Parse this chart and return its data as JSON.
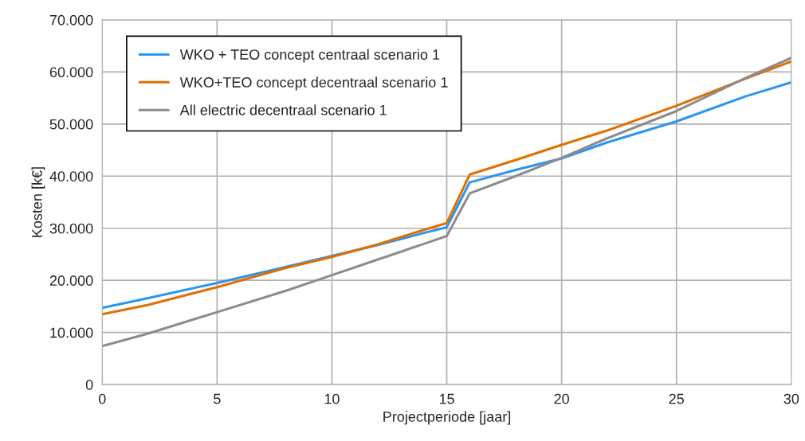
{
  "chart_data": {
    "type": "line",
    "xlabel": "Projectperiode [jaar]",
    "ylabel": "Kosten [k€]",
    "x": [
      0,
      2,
      5,
      8,
      10,
      12,
      14,
      15,
      16,
      18,
      20,
      22,
      25,
      28,
      30
    ],
    "series": [
      {
        "name": "WKO + TEO concept centraal scenario 1",
        "color": "#2b95f0",
        "values": [
          14700,
          16600,
          19500,
          22600,
          24700,
          26800,
          29100,
          30200,
          38800,
          41200,
          43400,
          46500,
          50500,
          55300,
          58000
        ]
      },
      {
        "name": "WKO+TEO concept decentraal scenario 1",
        "color": "#e07000",
        "values": [
          13500,
          15300,
          18700,
          22400,
          24500,
          26900,
          29700,
          31000,
          40300,
          43100,
          46000,
          48800,
          53500,
          58700,
          62000
        ]
      },
      {
        "name": "All electric decentraal scenario 1",
        "color": "#8c8c8c",
        "values": [
          7400,
          9800,
          13900,
          18000,
          21000,
          24000,
          27000,
          28500,
          36700,
          40000,
          43500,
          47300,
          52500,
          58800,
          62700
        ]
      }
    ],
    "xlim": [
      0,
      30
    ],
    "xticks": [
      0,
      5,
      10,
      15,
      20,
      25,
      30
    ],
    "ylim": [
      0,
      70000
    ],
    "yticks": [
      0,
      {
        "value": 10000,
        "label": "10.000"
      },
      {
        "value": 20000,
        "label": "20.000"
      },
      {
        "value": 30000,
        "label": "30.000"
      },
      {
        "value": 40000,
        "label": "40.000"
      },
      {
        "value": 50000,
        "label": "50.000"
      },
      {
        "value": 60000,
        "label": "60.000"
      },
      {
        "value": 70000,
        "label": "70.000"
      }
    ],
    "grid": true,
    "legend": "top left",
    "marker": "none",
    "line_style": "solid"
  }
}
